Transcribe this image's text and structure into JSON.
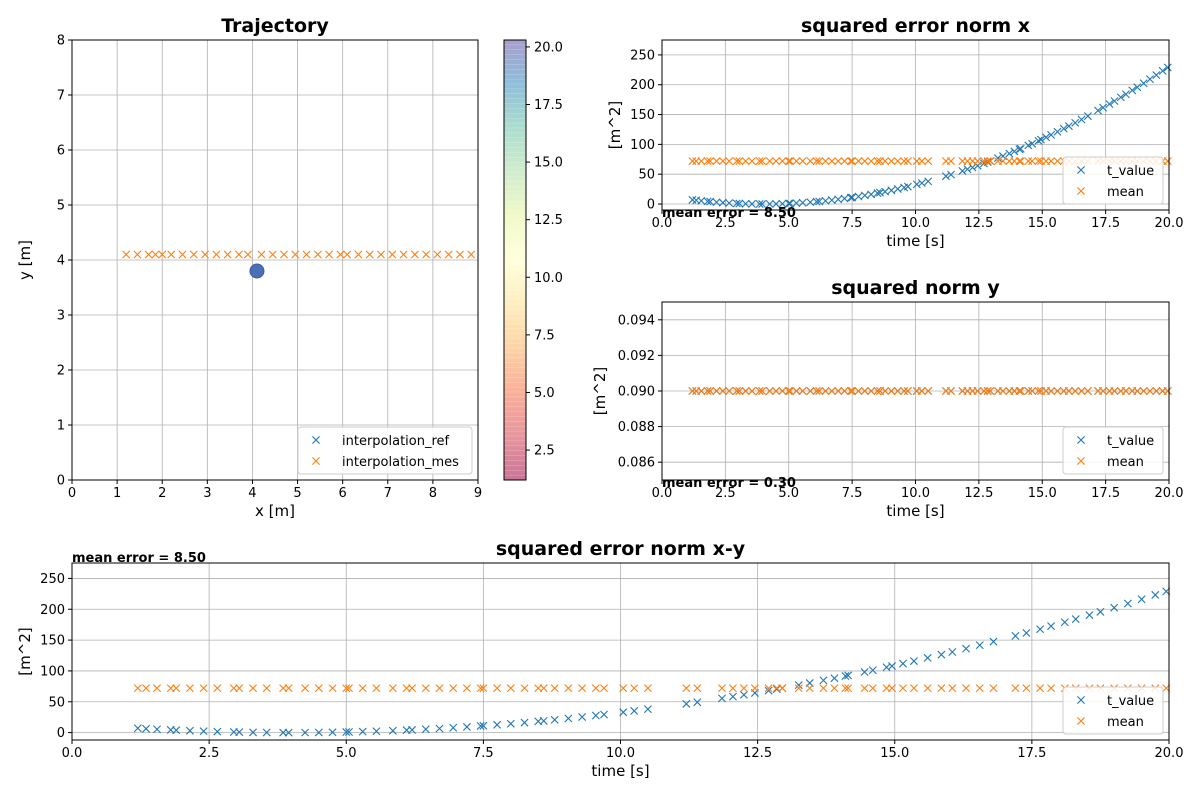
{
  "colors": {
    "blue": "#1f77b4",
    "orange": "#ff7f0e",
    "grid": "#b0b0b0",
    "axis": "#000000"
  },
  "chart_data": [
    {
      "id": "trajectory",
      "type": "scatter",
      "title": "Trajectory",
      "xlabel": "x [m]",
      "ylabel": "y [m]",
      "xlim": [
        0,
        9
      ],
      "ylim": [
        0,
        8
      ],
      "xticks": [
        0,
        1,
        2,
        3,
        4,
        5,
        6,
        7,
        8,
        9
      ],
      "yticks": [
        0,
        1,
        2,
        3,
        4,
        5,
        6,
        7,
        8
      ],
      "grid": true,
      "legend_position": "lower-right",
      "series": [
        {
          "name": "interpolation_ref",
          "marker": "x",
          "color": "#1f77b4",
          "x": [],
          "y": []
        },
        {
          "name": "interpolation_mes",
          "marker": "x",
          "color": "#ff7f0e",
          "x": [
            1.2,
            1.45,
            1.7,
            1.85,
            2.0,
            2.2,
            2.45,
            2.7,
            2.95,
            3.2,
            3.45,
            3.7,
            3.9,
            4.2,
            4.45,
            4.7,
            4.95,
            5.2,
            5.45,
            5.7,
            5.95,
            6.1,
            6.35,
            6.6,
            6.85,
            7.1,
            7.35,
            7.6,
            7.85,
            8.1,
            8.35,
            8.6,
            8.85
          ],
          "y": [
            4.1,
            4.1,
            4.1,
            4.1,
            4.1,
            4.1,
            4.1,
            4.1,
            4.1,
            4.1,
            4.1,
            4.1,
            4.1,
            4.1,
            4.1,
            4.1,
            4.1,
            4.1,
            4.1,
            4.1,
            4.1,
            4.1,
            4.1,
            4.1,
            4.1,
            4.1,
            4.1,
            4.1,
            4.1,
            4.1,
            4.1,
            4.1,
            4.1
          ]
        }
      ],
      "point": {
        "x": 4.1,
        "y": 3.8,
        "color": "#4a6fb5"
      },
      "colorbar": {
        "ticks": [
          2.5,
          5.0,
          7.5,
          10.0,
          12.5,
          15.0,
          17.5,
          20.0
        ],
        "range": [
          1.2,
          20.3
        ],
        "cmap": "Spectral"
      }
    },
    {
      "id": "sq_x",
      "type": "scatter",
      "title": "squared error norm  x",
      "xlabel": "time [s]",
      "ylabel": "[m^2]",
      "xlim": [
        0,
        20
      ],
      "ylim": [
        -10,
        275
      ],
      "xticks": [
        0.0,
        2.5,
        5.0,
        7.5,
        10.0,
        12.5,
        15.0,
        17.5,
        20.0
      ],
      "yticks": [
        0,
        50,
        100,
        150,
        200,
        250
      ],
      "grid": true,
      "legend_position": "lower-right",
      "annotation": "mean error = 8.50",
      "series": [
        {
          "name": "t_value",
          "marker": "x",
          "color": "#1f77b4",
          "func": "parabola",
          "a": 0.9,
          "t0": 4.0,
          "b": 0
        },
        {
          "name": "mean",
          "marker": "x",
          "color": "#ff7f0e",
          "constant": 72
        }
      ]
    },
    {
      "id": "sq_y",
      "type": "scatter",
      "title": "squared norm  y",
      "xlabel": "time [s]",
      "ylabel": "[m^2]",
      "xlim": [
        0,
        20
      ],
      "ylim": [
        0.085,
        0.095
      ],
      "xticks": [
        0.0,
        2.5,
        5.0,
        7.5,
        10.0,
        12.5,
        15.0,
        17.5,
        20.0
      ],
      "yticks": [
        0.086,
        0.088,
        0.09,
        0.092,
        0.094
      ],
      "ytick_labels": [
        "0.086",
        "0.088",
        "0.090",
        "0.092",
        "0.094"
      ],
      "grid": true,
      "legend_position": "lower-right",
      "annotation": "mean error = 0.30",
      "series": [
        {
          "name": "t_value",
          "marker": "x",
          "color": "#1f77b4",
          "constant": 0.09
        },
        {
          "name": "mean",
          "marker": "x",
          "color": "#ff7f0e",
          "constant": 0.09
        }
      ]
    },
    {
      "id": "sq_xy",
      "type": "scatter",
      "title": "squared error norm  x-y",
      "xlabel": "time [s]",
      "ylabel": "[m^2]",
      "xlim": [
        0,
        20
      ],
      "ylim": [
        -12,
        275
      ],
      "xticks": [
        0.0,
        2.5,
        5.0,
        7.5,
        10.0,
        12.5,
        15.0,
        17.5,
        20.0
      ],
      "yticks": [
        0,
        50,
        100,
        150,
        200,
        250
      ],
      "grid": true,
      "legend_position": "lower-right",
      "annotation": "mean error = 8.50",
      "series": [
        {
          "name": "t_value",
          "marker": "x",
          "color": "#1f77b4",
          "func": "parabola",
          "a": 0.9,
          "t0": 4.0,
          "b": 0
        },
        {
          "name": "mean",
          "marker": "x",
          "color": "#ff7f0e",
          "constant": 72
        }
      ]
    }
  ],
  "times": [
    1.2,
    1.35,
    1.55,
    1.8,
    1.9,
    2.15,
    2.4,
    2.65,
    2.95,
    3.05,
    3.3,
    3.55,
    3.85,
    3.95,
    4.25,
    4.5,
    4.75,
    5.0,
    5.05,
    5.3,
    5.55,
    5.85,
    6.1,
    6.2,
    6.45,
    6.7,
    6.95,
    7.2,
    7.45,
    7.5,
    7.75,
    8.0,
    8.25,
    8.5,
    8.6,
    8.8,
    9.05,
    9.3,
    9.55,
    9.7,
    10.05,
    10.25,
    10.5,
    11.2,
    11.4,
    11.85,
    12.05,
    12.25,
    12.45,
    12.7,
    12.85,
    12.95,
    13.25,
    13.45,
    13.7,
    13.9,
    14.1,
    14.15,
    14.45,
    14.6,
    14.85,
    14.95,
    15.15,
    15.35,
    15.6,
    15.85,
    16.05,
    16.3,
    16.55,
    16.8,
    17.2,
    17.4,
    17.65,
    17.85,
    18.1,
    18.3,
    18.55,
    18.75,
    19.0,
    19.25,
    19.5,
    19.75,
    19.95
  ]
}
